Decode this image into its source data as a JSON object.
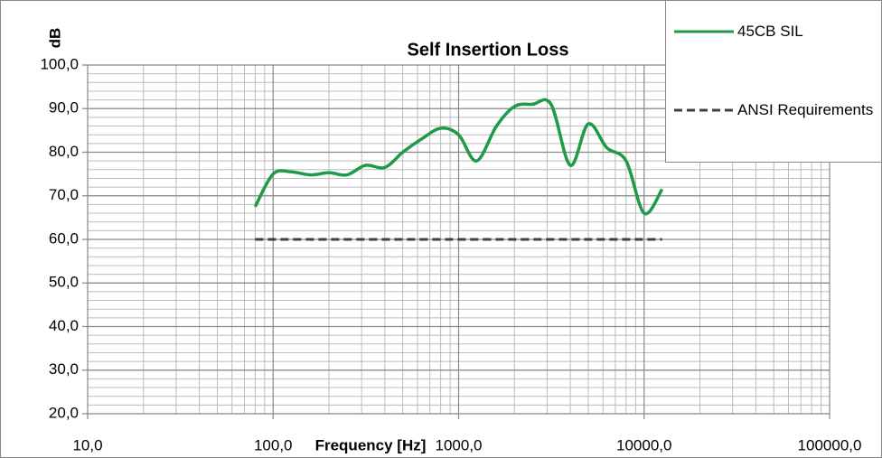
{
  "chart_data": {
    "type": "line",
    "title": "Self Insertion Loss",
    "xlabel": "Frequency [Hz]",
    "ylabel": "dB",
    "log_x": true,
    "grid": true,
    "legend": "top-right",
    "x": [
      80,
      100,
      125,
      160,
      200,
      250,
      315,
      400,
      500,
      630,
      800,
      1000,
      1250,
      1600,
      2000,
      2500,
      3150,
      4000,
      5000,
      6300,
      8000,
      10000,
      12500
    ],
    "series": [
      {
        "name": "45CB SIL",
        "color": "#1e9a48",
        "dash": false,
        "values": [
          67.5,
          75,
          75.5,
          74.8,
          75.3,
          74.8,
          77,
          76.5,
          80,
          83,
          85.5,
          84,
          78,
          86,
          90.5,
          91,
          91,
          77,
          86.5,
          81,
          78,
          66,
          71.5
        ]
      },
      {
        "name": "ANSI Requirements",
        "color": "#404040",
        "dash": true,
        "values": [
          60,
          60,
          60,
          60,
          60,
          60,
          60,
          60,
          60,
          60,
          60,
          60,
          60,
          60,
          60,
          60,
          60,
          60,
          60,
          60,
          60,
          60,
          60
        ]
      }
    ],
    "xlim": [
      10,
      100000
    ],
    "xticks": [
      {
        "value": 10,
        "label": "10,0"
      },
      {
        "value": 100,
        "label": "100,0"
      },
      {
        "value": 1000,
        "label": "1000,0"
      },
      {
        "value": 10000,
        "label": "10000,0"
      },
      {
        "value": 100000,
        "label": "100000,0"
      }
    ],
    "ylim": [
      20,
      100
    ],
    "yticks": [
      {
        "value": 20,
        "label": "20,0"
      },
      {
        "value": 30,
        "label": "30,0"
      },
      {
        "value": 40,
        "label": "40,0"
      },
      {
        "value": 50,
        "label": "50,0"
      },
      {
        "value": 60,
        "label": "60,0"
      },
      {
        "value": 70,
        "label": "70,0"
      },
      {
        "value": 80,
        "label": "80,0"
      },
      {
        "value": 90,
        "label": "90,0"
      },
      {
        "value": 100,
        "label": "100,0"
      }
    ]
  }
}
